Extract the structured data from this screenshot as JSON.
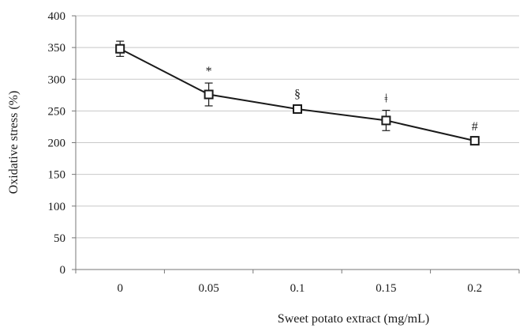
{
  "chart_data": {
    "type": "line",
    "title": "",
    "xlabel": "Sweet potato extract (mg/mL)",
    "ylabel": "Oxidative stress (%)",
    "categories": [
      "0",
      "0.05",
      "0.1",
      "0.15",
      "0.2"
    ],
    "ylim": [
      0,
      400
    ],
    "yticks": [
      0,
      50,
      100,
      150,
      200,
      250,
      300,
      350,
      400
    ],
    "grid": true,
    "legend": "none",
    "marker": "open-square",
    "series": [
      {
        "values": [
          348,
          276,
          253,
          235,
          203
        ],
        "errors": [
          12,
          18,
          5,
          16,
          4
        ]
      }
    ],
    "annotations": [
      {
        "category": "0.05",
        "label": "*"
      },
      {
        "category": "0.1",
        "label": "§"
      },
      {
        "category": "0.15",
        "label": "ǂ"
      },
      {
        "category": "0.2",
        "label": "#"
      }
    ],
    "colors": {
      "line": "#1a1a1a",
      "grid": "#c8c8c8",
      "axis": "#777777"
    }
  }
}
